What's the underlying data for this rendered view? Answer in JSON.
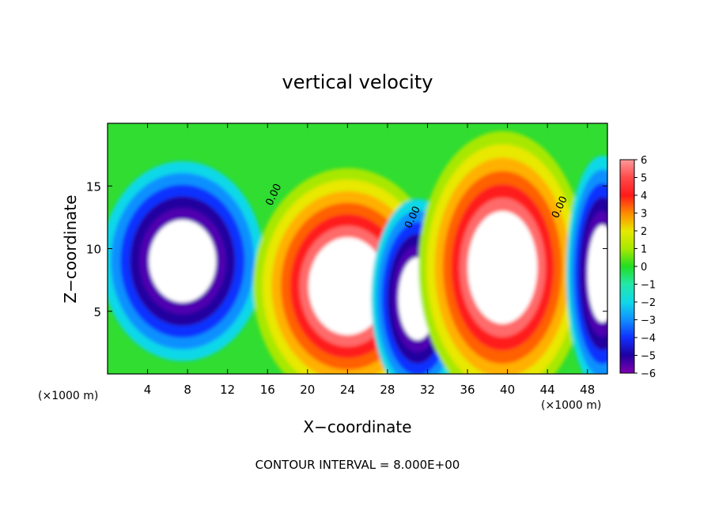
{
  "chart_data": {
    "type": "heatmap",
    "title": "vertical velocity",
    "xlabel": "X−coordinate",
    "ylabel": "Z−coordinate",
    "x_unit_left": "(×1000 m)",
    "x_unit_right": "(×1000 m)",
    "xlim": [
      0,
      50
    ],
    "ylim": [
      0,
      20
    ],
    "x_ticks": [
      4,
      8,
      12,
      16,
      20,
      24,
      28,
      32,
      36,
      40,
      44,
      48
    ],
    "y_ticks": [
      5,
      10,
      15
    ],
    "colorbar": {
      "range": [
        -6,
        6
      ],
      "tick_labels": [
        "6",
        "5",
        "4",
        "3",
        "2",
        "1",
        "0",
        "−1",
        "−2",
        "−3",
        "−4",
        "−5",
        "−6"
      ]
    },
    "contour_labels": [
      "0.00",
      "0.00",
      "0.00"
    ],
    "contour_label_x": [
      16.9,
      30.8,
      45.5
    ],
    "contour_label_y": [
      14.2,
      12.4,
      13.2
    ],
    "footer": "CONTOUR INTERVAL = 8.000E+00",
    "features": [
      {
        "kind": "downdraft",
        "x": 7.5,
        "z": 9.0,
        "rx": 5.6,
        "rz": 5.5
      },
      {
        "kind": "updraft",
        "x": 24.0,
        "z": 7.0,
        "rx": 6.5,
        "rz": 6.5
      },
      {
        "kind": "downdraft",
        "x": 31.0,
        "z": 6.0,
        "rx": 3.2,
        "rz": 5.5
      },
      {
        "kind": "updraft",
        "x": 39.5,
        "z": 8.5,
        "rx": 5.8,
        "rz": 7.5
      },
      {
        "kind": "downdraft",
        "x": 49.5,
        "z": 8.0,
        "rx": 2.5,
        "rz": 6.5
      }
    ]
  }
}
